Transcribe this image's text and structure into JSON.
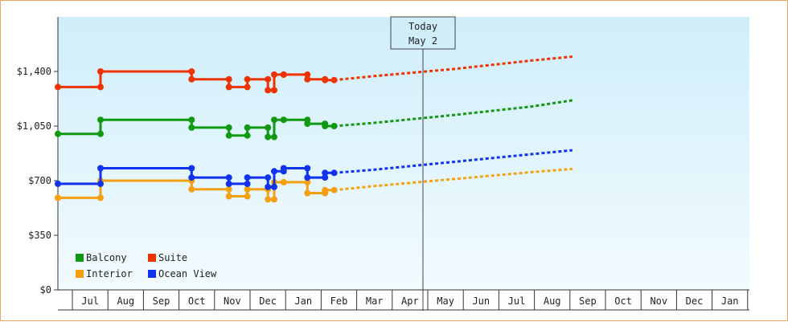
{
  "chart_data": {
    "type": "line",
    "y_tick_labels": [
      "$0",
      "$350",
      "$700",
      "$1,050",
      "$1,400"
    ],
    "ylim": [
      0,
      1750
    ],
    "x_month_labels": [
      "Jul",
      "Aug",
      "Sep",
      "Oct",
      "Nov",
      "Dec",
      "Jan",
      "Feb",
      "Mar",
      "Apr",
      "May",
      "Jun",
      "Jul",
      "Aug",
      "Sep",
      "Oct",
      "Nov",
      "Dec",
      "Jan"
    ],
    "today_marker": {
      "line1": "Today",
      "line2": "May 2"
    },
    "legend": {
      "placement": "bottom-left"
    },
    "grid": false,
    "series": [
      {
        "name": "Balcony",
        "color": "#119911",
        "history": [
          [
            0.0,
            1000
          ],
          [
            1.62,
            1000
          ],
          [
            1.62,
            1090
          ],
          [
            5.08,
            1090
          ],
          [
            5.08,
            1040
          ],
          [
            6.5,
            1040
          ],
          [
            6.5,
            990
          ],
          [
            7.2,
            990
          ],
          [
            7.2,
            1040
          ],
          [
            7.98,
            1040
          ],
          [
            7.98,
            980
          ],
          [
            8.22,
            980
          ],
          [
            8.22,
            1090
          ],
          [
            8.58,
            1090
          ],
          [
            8.58,
            1090
          ],
          [
            9.48,
            1090
          ],
          [
            9.48,
            1065
          ],
          [
            10.15,
            1065
          ],
          [
            10.15,
            1050
          ],
          [
            10.5,
            1050
          ]
        ],
        "forecast": [
          [
            10.5,
            1050
          ],
          [
            12.0,
            1070
          ],
          [
            15.0,
            1120
          ],
          [
            18.0,
            1175
          ],
          [
            19.55,
            1215
          ]
        ]
      },
      {
        "name": "Suite",
        "color": "#ee3300",
        "history": [
          [
            0.0,
            1300
          ],
          [
            1.62,
            1300
          ],
          [
            1.62,
            1400
          ],
          [
            5.08,
            1400
          ],
          [
            5.08,
            1350
          ],
          [
            6.5,
            1350
          ],
          [
            6.5,
            1300
          ],
          [
            7.2,
            1300
          ],
          [
            7.2,
            1350
          ],
          [
            7.98,
            1350
          ],
          [
            7.98,
            1280
          ],
          [
            8.22,
            1280
          ],
          [
            8.22,
            1380
          ],
          [
            8.58,
            1380
          ],
          [
            8.58,
            1380
          ],
          [
            9.48,
            1380
          ],
          [
            9.48,
            1350
          ],
          [
            10.15,
            1350
          ],
          [
            10.15,
            1345
          ],
          [
            10.5,
            1345
          ]
        ],
        "forecast": [
          [
            10.5,
            1345
          ],
          [
            12.0,
            1370
          ],
          [
            15.0,
            1415
          ],
          [
            18.0,
            1470
          ],
          [
            19.55,
            1495
          ]
        ]
      },
      {
        "name": "Interior",
        "color": "#f5a010",
        "history": [
          [
            0.0,
            590
          ],
          [
            1.62,
            590
          ],
          [
            1.62,
            700
          ],
          [
            5.08,
            700
          ],
          [
            5.08,
            645
          ],
          [
            6.5,
            645
          ],
          [
            6.5,
            600
          ],
          [
            7.2,
            600
          ],
          [
            7.2,
            645
          ],
          [
            7.98,
            645
          ],
          [
            7.98,
            580
          ],
          [
            8.22,
            580
          ],
          [
            8.22,
            690
          ],
          [
            8.58,
            690
          ],
          [
            8.58,
            690
          ],
          [
            9.48,
            690
          ],
          [
            9.48,
            620
          ],
          [
            10.15,
            620
          ],
          [
            10.15,
            640
          ],
          [
            10.5,
            640
          ]
        ],
        "forecast": [
          [
            10.5,
            640
          ],
          [
            12.0,
            665
          ],
          [
            15.0,
            710
          ],
          [
            18.0,
            755
          ],
          [
            19.55,
            775
          ]
        ]
      },
      {
        "name": "Ocean View",
        "color": "#1133ee",
        "history": [
          [
            0.0,
            680
          ],
          [
            1.62,
            680
          ],
          [
            1.62,
            780
          ],
          [
            5.08,
            780
          ],
          [
            5.08,
            720
          ],
          [
            6.5,
            720
          ],
          [
            6.5,
            680
          ],
          [
            7.2,
            680
          ],
          [
            7.2,
            720
          ],
          [
            7.98,
            720
          ],
          [
            7.98,
            660
          ],
          [
            8.22,
            660
          ],
          [
            8.22,
            760
          ],
          [
            8.58,
            760
          ],
          [
            8.58,
            780
          ],
          [
            9.48,
            780
          ],
          [
            9.48,
            720
          ],
          [
            10.15,
            720
          ],
          [
            10.15,
            750
          ],
          [
            10.5,
            750
          ]
        ],
        "forecast": [
          [
            10.5,
            750
          ],
          [
            12.0,
            770
          ],
          [
            15.0,
            820
          ],
          [
            18.0,
            870
          ],
          [
            19.55,
            895
          ]
        ]
      }
    ]
  }
}
